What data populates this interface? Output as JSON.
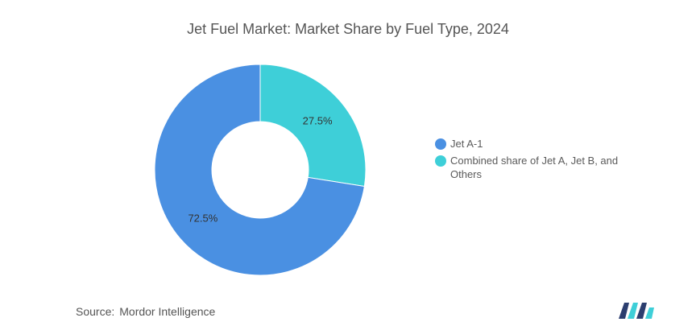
{
  "chart_data": {
    "type": "pie",
    "title": "Jet Fuel Market: Market Share by Fuel Type, 2024",
    "donut": true,
    "categories": [
      "Jet A-1",
      "Combined share of Jet A, Jet B, and Others"
    ],
    "values": [
      72.5,
      27.5
    ],
    "value_labels": [
      "72.5%",
      "27.5%"
    ],
    "colors": [
      "#4a90e2",
      "#3ecfd8"
    ],
    "legend_position": "right"
  },
  "source": {
    "label": "Source:",
    "text": "Mordor Intelligence"
  },
  "logo": {
    "icon": "mordor-intelligence-logo-icon",
    "colors": [
      "#2c3e6f",
      "#3ecfd8"
    ]
  }
}
